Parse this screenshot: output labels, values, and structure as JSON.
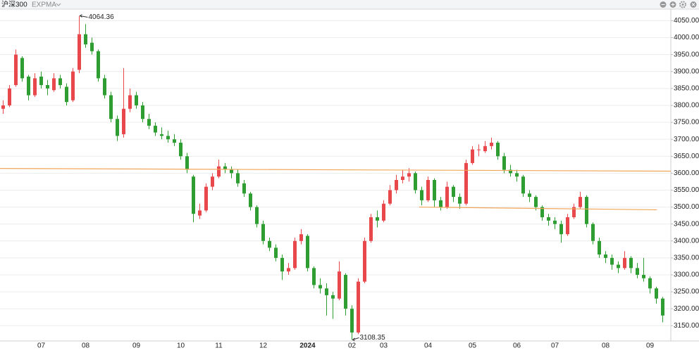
{
  "chart_data": {
    "type": "candlestick",
    "title": "沪深300",
    "indicator": "EXPMA",
    "up_color": "#e8474b",
    "down_color": "#2f9e32",
    "grid": true,
    "ylim": [
      3105,
      4082
    ],
    "yticks": [
      {
        "value": 3150,
        "label": "3150.00"
      },
      {
        "value": 3200,
        "label": "3200.00"
      },
      {
        "value": 3250,
        "label": "3250.00"
      },
      {
        "value": 3300,
        "label": "3300.00"
      },
      {
        "value": 3350,
        "label": "3350.00"
      },
      {
        "value": 3400,
        "label": "3400.00"
      },
      {
        "value": 3450,
        "label": "3450.00"
      },
      {
        "value": 3500,
        "label": "3500.00"
      },
      {
        "value": 3550,
        "label": "3550.00"
      },
      {
        "value": 3600,
        "label": "3600.00"
      },
      {
        "value": 3650,
        "label": "3650.00"
      },
      {
        "value": 3700,
        "label": "3700.00"
      },
      {
        "value": 3750,
        "label": "3750.00"
      },
      {
        "value": 3800,
        "label": "3800.00"
      },
      {
        "value": 3850,
        "label": "3850.00"
      },
      {
        "value": 3900,
        "label": "3900.00"
      },
      {
        "value": 3950,
        "label": "3950.00"
      },
      {
        "value": 4000,
        "label": "4000.00"
      },
      {
        "value": 4050,
        "label": "4050.00"
      }
    ],
    "categories": [
      null,
      null,
      null,
      null,
      null,
      null,
      "07",
      null,
      null,
      null,
      null,
      null,
      null,
      "08",
      null,
      null,
      null,
      null,
      null,
      null,
      null,
      "09",
      null,
      null,
      null,
      null,
      null,
      null,
      "10",
      null,
      null,
      null,
      null,
      null,
      "11",
      null,
      null,
      null,
      null,
      null,
      null,
      "12",
      null,
      null,
      null,
      null,
      null,
      null,
      "2024",
      null,
      null,
      null,
      null,
      null,
      null,
      "02",
      null,
      null,
      null,
      null,
      "03",
      null,
      null,
      null,
      null,
      null,
      null,
      "04",
      null,
      null,
      null,
      null,
      null,
      null,
      "05",
      null,
      null,
      null,
      null,
      null,
      null,
      "06",
      null,
      null,
      null,
      null,
      null,
      "07",
      null,
      null,
      null,
      null,
      null,
      null,
      null,
      "08",
      null,
      null,
      null,
      null,
      null,
      null,
      "09",
      null,
      null
    ],
    "ohlc": [
      [
        3790,
        3815,
        3775,
        3800
      ],
      [
        3800,
        3860,
        3795,
        3850
      ],
      [
        3860,
        3965,
        3855,
        3950
      ],
      [
        3940,
        3945,
        3870,
        3880
      ],
      [
        3885,
        3890,
        3815,
        3830
      ],
      [
        3830,
        3895,
        3825,
        3880
      ],
      [
        3885,
        3900,
        3850,
        3860
      ],
      [
        3860,
        3875,
        3830,
        3850
      ],
      [
        3845,
        3895,
        3840,
        3880
      ],
      [
        3880,
        3890,
        3850,
        3860
      ],
      [
        3855,
        3865,
        3800,
        3810
      ],
      [
        3815,
        3910,
        3810,
        3900
      ],
      [
        3905,
        4064.36,
        3895,
        4010
      ],
      [
        4010,
        4040,
        3970,
        3980
      ],
      [
        3985,
        4000,
        3950,
        3960
      ],
      [
        3960,
        3965,
        3870,
        3880
      ],
      [
        3880,
        3890,
        3820,
        3830
      ],
      [
        3830,
        3840,
        3750,
        3760
      ],
      [
        3760,
        3770,
        3695,
        3710
      ],
      [
        3715,
        3910,
        3705,
        3790
      ],
      [
        3790,
        3850,
        3780,
        3830
      ],
      [
        3830,
        3840,
        3790,
        3800
      ],
      [
        3800,
        3810,
        3750,
        3760
      ],
      [
        3760,
        3775,
        3730,
        3740
      ],
      [
        3740,
        3750,
        3710,
        3720
      ],
      [
        3715,
        3735,
        3700,
        3710
      ],
      [
        3710,
        3725,
        3690,
        3700
      ],
      [
        3700,
        3715,
        3680,
        3690
      ],
      [
        3690,
        3700,
        3640,
        3650
      ],
      [
        3650,
        3660,
        3600,
        3610
      ],
      [
        3590,
        3595,
        3455,
        3480
      ],
      [
        3475,
        3510,
        3465,
        3490
      ],
      [
        3490,
        3570,
        3485,
        3560
      ],
      [
        3560,
        3600,
        3550,
        3590
      ],
      [
        3590,
        3640,
        3585,
        3620
      ],
      [
        3620,
        3630,
        3600,
        3610
      ],
      [
        3610,
        3620,
        3585,
        3600
      ],
      [
        3600,
        3610,
        3560,
        3570
      ],
      [
        3570,
        3580,
        3530,
        3540
      ],
      [
        3540,
        3545,
        3490,
        3500
      ],
      [
        3500,
        3505,
        3440,
        3450
      ],
      [
        3450,
        3460,
        3390,
        3400
      ],
      [
        3400,
        3410,
        3370,
        3380
      ],
      [
        3380,
        3390,
        3340,
        3350
      ],
      [
        3350,
        3360,
        3285,
        3310
      ],
      [
        3310,
        3335,
        3300,
        3320
      ],
      [
        3320,
        3410,
        3315,
        3400
      ],
      [
        3400,
        3435,
        3390,
        3420
      ],
      [
        3415,
        3420,
        3310,
        3320
      ],
      [
        3320,
        3325,
        3260,
        3270
      ],
      [
        3270,
        3290,
        3245,
        3260
      ],
      [
        3260,
        3275,
        3180,
        3240
      ],
      [
        3240,
        3250,
        3170,
        3230
      ],
      [
        3230,
        3340,
        3225,
        3310
      ],
      [
        3300,
        3305,
        3180,
        3200
      ],
      [
        3200,
        3210,
        3108.35,
        3130
      ],
      [
        3130,
        3290,
        3125,
        3280
      ],
      [
        3280,
        3410,
        3275,
        3400
      ],
      [
        3400,
        3480,
        3395,
        3470
      ],
      [
        3470,
        3490,
        3440,
        3460
      ],
      [
        3460,
        3520,
        3455,
        3510
      ],
      [
        3510,
        3565,
        3505,
        3550
      ],
      [
        3550,
        3595,
        3540,
        3580
      ],
      [
        3580,
        3610,
        3570,
        3590
      ],
      [
        3590,
        3615,
        3575,
        3600
      ],
      [
        3600,
        3605,
        3540,
        3550
      ],
      [
        3550,
        3560,
        3505,
        3520
      ],
      [
        3520,
        3590,
        3515,
        3580
      ],
      [
        3580,
        3585,
        3500,
        3520
      ],
      [
        3520,
        3530,
        3490,
        3500
      ],
      [
        3500,
        3575,
        3495,
        3560
      ],
      [
        3560,
        3565,
        3515,
        3530
      ],
      [
        3530,
        3540,
        3495,
        3510
      ],
      [
        3510,
        3640,
        3505,
        3630
      ],
      [
        3630,
        3680,
        3625,
        3670
      ],
      [
        3670,
        3685,
        3650,
        3670
      ],
      [
        3665,
        3695,
        3660,
        3680
      ],
      [
        3680,
        3705,
        3670,
        3690
      ],
      [
        3690,
        3695,
        3640,
        3650
      ],
      [
        3650,
        3660,
        3600,
        3610
      ],
      [
        3610,
        3625,
        3590,
        3600
      ],
      [
        3600,
        3610,
        3575,
        3590
      ],
      [
        3590,
        3595,
        3530,
        3540
      ],
      [
        3540,
        3550,
        3515,
        3530
      ],
      [
        3530,
        3535,
        3490,
        3500
      ],
      [
        3500,
        3505,
        3460,
        3470
      ],
      [
        3470,
        3480,
        3445,
        3460
      ],
      [
        3460,
        3470,
        3435,
        3450
      ],
      [
        3450,
        3460,
        3395,
        3420
      ],
      [
        3420,
        3480,
        3415,
        3470
      ],
      [
        3470,
        3510,
        3465,
        3500
      ],
      [
        3500,
        3545,
        3495,
        3530
      ],
      [
        3530,
        3535,
        3440,
        3450
      ],
      [
        3450,
        3455,
        3390,
        3400
      ],
      [
        3400,
        3410,
        3350,
        3360
      ],
      [
        3360,
        3370,
        3335,
        3350
      ],
      [
        3350,
        3360,
        3315,
        3330
      ],
      [
        3330,
        3340,
        3305,
        3320
      ],
      [
        3320,
        3370,
        3315,
        3350
      ],
      [
        3350,
        3355,
        3305,
        3320
      ],
      [
        3320,
        3335,
        3290,
        3300
      ],
      [
        3300,
        3350,
        3280,
        3290
      ],
      [
        3290,
        3295,
        3245,
        3260
      ],
      [
        3260,
        3265,
        3215,
        3230
      ],
      [
        3230,
        3235,
        3160,
        3180
      ]
    ],
    "trend_lines": [
      {
        "x": [
          -0.5,
          105.3
        ],
        "values": [
          3614,
          3606
        ],
        "color": "#f2a65a"
      },
      {
        "x": [
          65.6,
          103.1
        ],
        "values": [
          3500,
          3492
        ],
        "color": "#f2a65a"
      }
    ]
  }
}
